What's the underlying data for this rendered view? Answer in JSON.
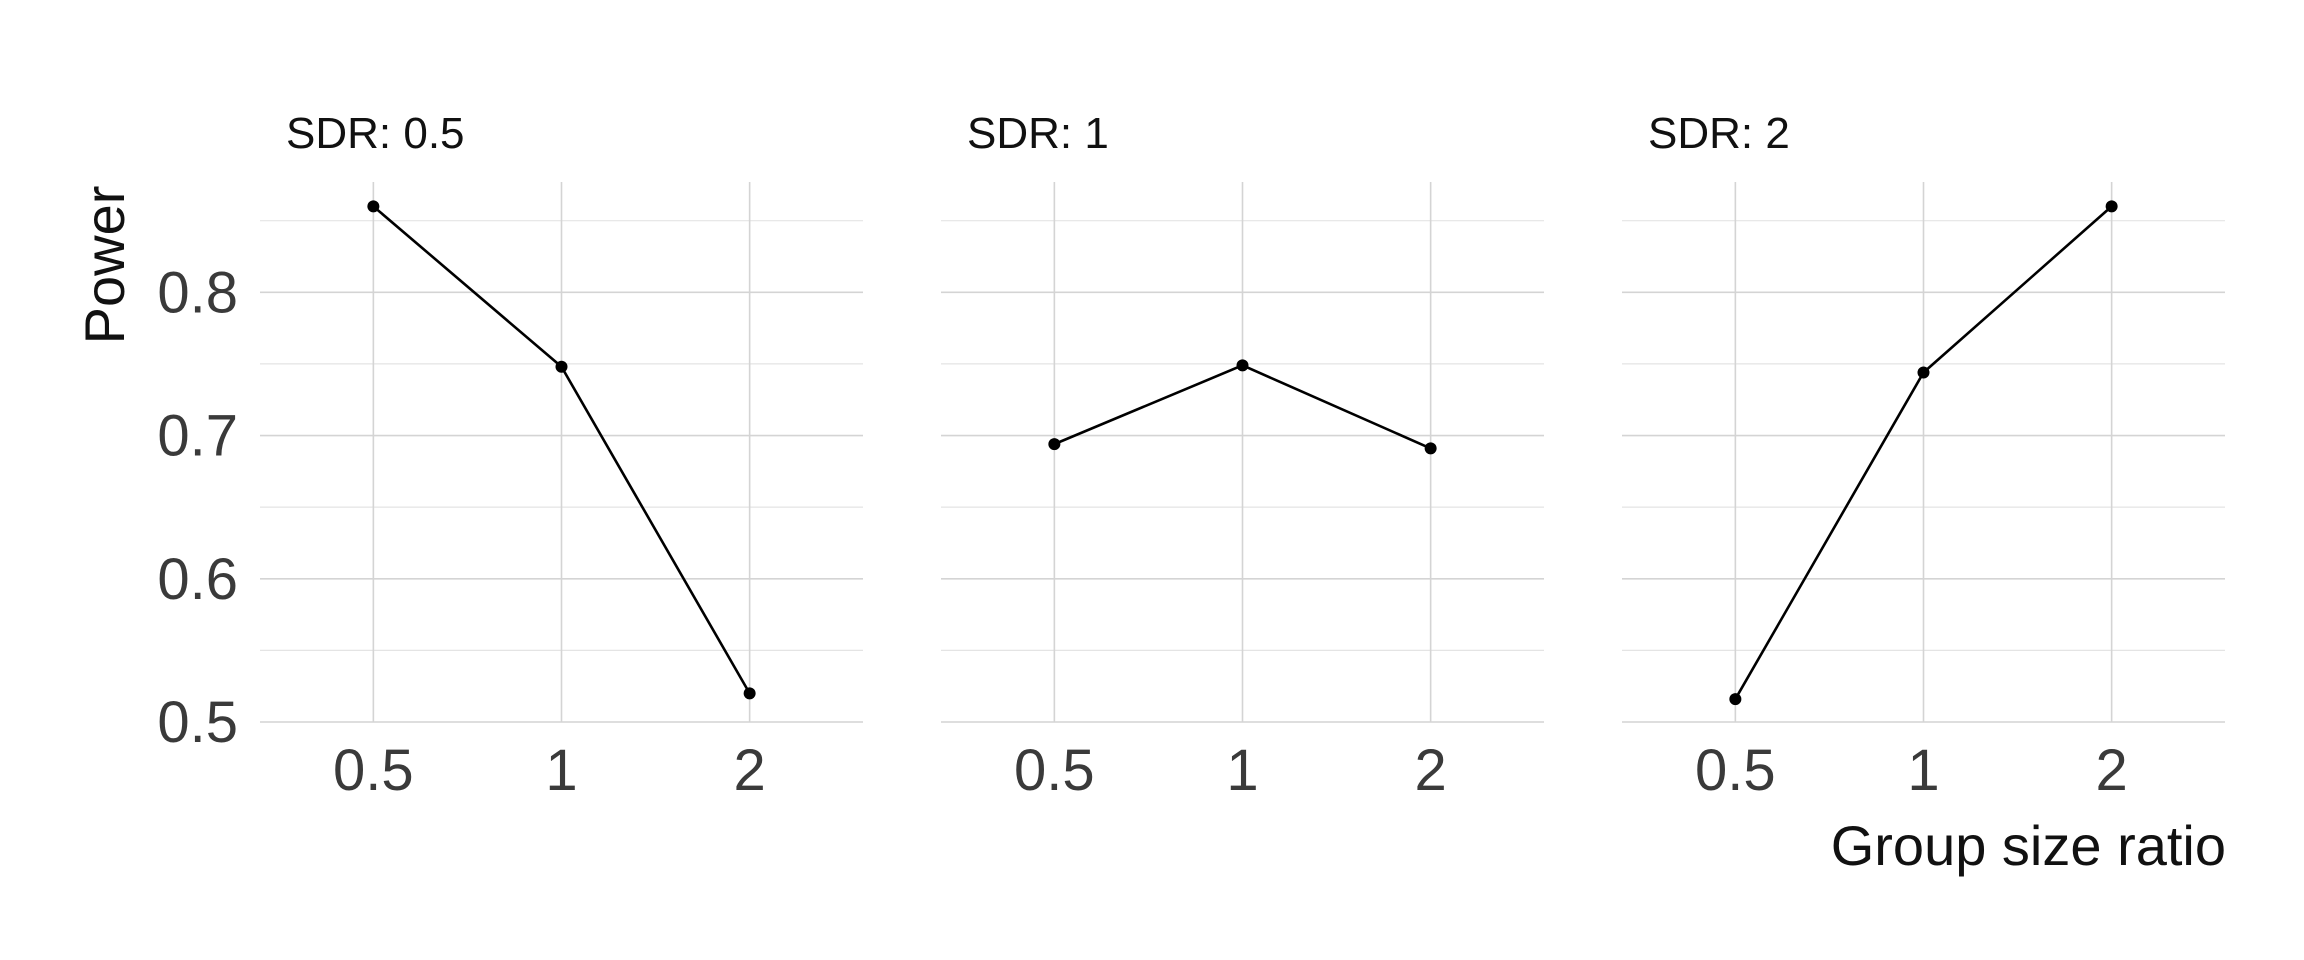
{
  "chart_data": {
    "type": "line",
    "xlabel": "Group size ratio",
    "ylabel": "Power",
    "x_categories": [
      "0.5",
      "1",
      "2"
    ],
    "y_ticks": [
      0.5,
      0.6,
      0.7,
      0.8
    ],
    "y_tick_labels": [
      "0.5",
      "0.6",
      "0.7",
      "0.8"
    ],
    "ylim": [
      0.5,
      0.877
    ],
    "grid": true,
    "facets": [
      {
        "title": "SDR: 0.5",
        "values": [
          0.86,
          0.748,
          0.52
        ]
      },
      {
        "title": "SDR: 1",
        "values": [
          0.694,
          0.749,
          0.691
        ]
      },
      {
        "title": "SDR: 2",
        "values": [
          0.516,
          0.744,
          0.86
        ]
      }
    ]
  }
}
